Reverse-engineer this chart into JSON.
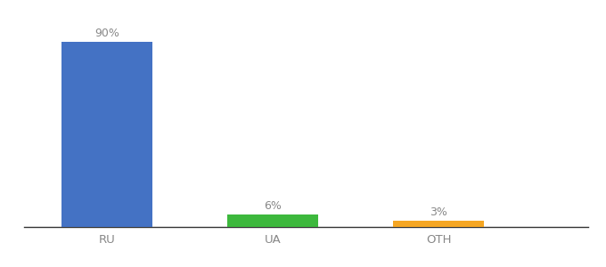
{
  "categories": [
    "RU",
    "UA",
    "OTH"
  ],
  "values": [
    90,
    6,
    3
  ],
  "bar_colors": [
    "#4472c4",
    "#3db83d",
    "#f5a623"
  ],
  "labels": [
    "90%",
    "6%",
    "3%"
  ],
  "ylim": [
    0,
    100
  ],
  "background_color": "#ffffff",
  "label_fontsize": 9,
  "tick_fontsize": 9.5,
  "bar_width": 0.55,
  "label_color": "#888888",
  "tick_color": "#888888"
}
